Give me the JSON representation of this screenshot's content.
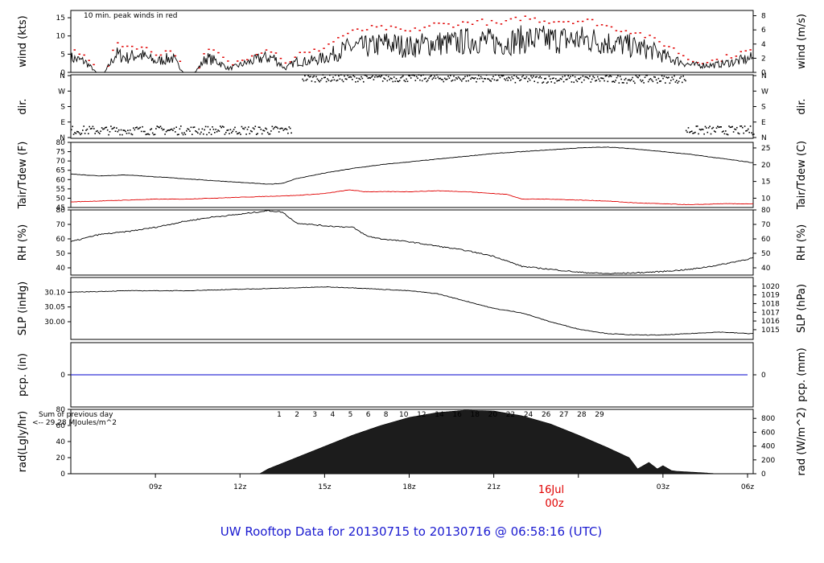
{
  "title": "UW Rooftop Data for 20130715  to  20130716 @ 06:58:16  (UTC)",
  "colors": {
    "title": "#1a1ad0",
    "peak": "#e00000",
    "dew": "#e00000",
    "pcp": "#0000cc",
    "rad_note": "#8a00c8",
    "date_label": "#e00000"
  },
  "x_axis": {
    "ticks": [
      "09z",
      "12z",
      "15z",
      "18z",
      "21z",
      "00z",
      "03z",
      "06z"
    ],
    "date_label": "16Jul",
    "date_tick": "00z"
  },
  "chart_data": [
    {
      "name": "wind",
      "type": "line",
      "left_label": "wind (kts)",
      "right_label": "wind (m/s)",
      "note": "10 min. peak winds in red",
      "ylim": [
        0,
        17
      ],
      "left_ticks": [
        "0",
        "5",
        "10",
        "15"
      ],
      "right_ticks": [
        "0",
        "2",
        "4",
        "6",
        "8"
      ],
      "x_hours": [
        6,
        6.5,
        6.9,
        7.2,
        7.6,
        8,
        8.4,
        9,
        9.6,
        10,
        10.4,
        10.8,
        11.2,
        11.6,
        12,
        12.4,
        12.8,
        13.2,
        13.6,
        14,
        14.4,
        15,
        15.6,
        16,
        16.6,
        17.2,
        18,
        18.8,
        19.6,
        20.4,
        21.2,
        22,
        22.8,
        23.6,
        24.4,
        25.2,
        26,
        26.6,
        27.2,
        28,
        28.8,
        29.6,
        30.2
      ],
      "values": [
        4,
        3,
        0,
        0,
        5,
        4,
        5,
        3,
        4,
        0,
        0,
        4,
        3,
        1,
        2,
        3,
        4,
        4,
        1,
        3,
        3,
        4,
        6,
        7,
        7,
        8,
        7,
        8,
        8,
        9,
        8,
        9,
        9,
        9,
        9,
        8,
        7,
        6,
        4,
        2,
        2,
        3,
        4
      ],
      "peak_values": [
        6,
        5,
        0,
        0,
        8,
        7,
        7,
        5,
        6,
        0,
        0,
        6,
        5,
        2,
        3,
        5,
        6,
        6,
        2,
        5,
        5,
        7,
        10,
        11,
        12,
        12,
        11,
        13,
        13,
        14,
        13,
        15,
        14,
        14,
        14,
        12,
        11,
        9,
        7,
        3,
        3,
        5,
        6
      ]
    },
    {
      "name": "direction",
      "type": "scatter",
      "left_label": "dir.",
      "right_label": "dir.",
      "ylim": [
        0,
        360
      ],
      "left_ticks": [
        "N",
        "E",
        "S",
        "W",
        "N"
      ],
      "right_ticks": [
        "N",
        "E",
        "S",
        "W",
        "N"
      ],
      "clusters": [
        {
          "x_range": [
            6,
            13.8
          ],
          "center": 45,
          "spread": 25
        },
        {
          "x_range": [
            14.2,
            21.5
          ],
          "center": 340,
          "spread": 20
        },
        {
          "x_range": [
            21.5,
            27.8
          ],
          "center": 335,
          "spread": 22
        },
        {
          "x_range": [
            27.8,
            30.2
          ],
          "center": 45,
          "spread": 25
        }
      ]
    },
    {
      "name": "temperature",
      "type": "line",
      "left_label": "Tair/Tdew (F)",
      "right_label": "Tair/Tdew (C)",
      "ylim": [
        45,
        80
      ],
      "left_ticks": [
        "45",
        "50",
        "55",
        "60",
        "65",
        "70",
        "75",
        "80"
      ],
      "right_ticks": [
        "10",
        "15",
        "20",
        "25"
      ],
      "series": [
        {
          "name": "Tair",
          "x_hours": [
            6,
            7,
            8,
            9,
            10,
            11,
            12,
            13,
            13.5,
            14,
            15,
            16,
            17,
            18,
            19,
            20,
            21,
            22,
            23,
            24,
            25,
            26,
            27,
            28,
            29,
            30,
            30.2
          ],
          "values": [
            63,
            62,
            62.5,
            61.5,
            60.5,
            59.5,
            58.5,
            57.5,
            58,
            60.5,
            63.5,
            66,
            68,
            69.5,
            71,
            72.5,
            74,
            75,
            76,
            77,
            77.5,
            76.5,
            75,
            73.5,
            71.5,
            69.5,
            69
          ]
        },
        {
          "name": "Tdew",
          "x_hours": [
            6,
            7,
            8,
            9,
            10,
            11,
            12,
            13,
            14,
            15,
            15.9,
            16.4,
            17,
            18,
            19,
            20,
            21,
            21.5,
            22,
            23,
            24,
            25,
            26,
            27,
            28,
            29,
            30,
            30.2
          ],
          "values": [
            48,
            48.5,
            49,
            49.5,
            49.5,
            50,
            50.5,
            51,
            51.5,
            52.5,
            54.5,
            53.5,
            53.5,
            53.5,
            54,
            53.5,
            52.5,
            52,
            49.5,
            49.5,
            49,
            48.5,
            47.5,
            47,
            46.5,
            47,
            47,
            47
          ]
        }
      ]
    },
    {
      "name": "rh",
      "type": "line",
      "left_label": "RH (%)",
      "right_label": "RH (%)",
      "ylim": [
        35,
        80
      ],
      "left_ticks": [
        "40",
        "50",
        "60",
        "70",
        "80"
      ],
      "right_ticks": [
        "40",
        "50",
        "60",
        "70",
        "80"
      ],
      "x_hours": [
        6,
        7,
        8,
        9,
        10,
        11,
        12,
        13,
        13.5,
        14,
        14.5,
        15,
        16,
        16.5,
        17,
        18,
        19,
        20,
        21,
        22,
        23,
        24,
        25,
        26,
        27,
        28,
        29,
        30,
        30.2
      ],
      "values": [
        58,
        63,
        65,
        68,
        72,
        75,
        77,
        79.5,
        78.5,
        71,
        70,
        69,
        68,
        62,
        60,
        58,
        55,
        52,
        48,
        41,
        39,
        37,
        36,
        36.5,
        37.5,
        39,
        42,
        46,
        47
      ]
    },
    {
      "name": "slp",
      "type": "line",
      "left_label": "SLP (inHg)",
      "right_label": "SLP (hPa)",
      "ylim": [
        29.94,
        30.15
      ],
      "left_ticks": [
        "30.00",
        "30.05",
        "30.10"
      ],
      "right_ticks": [
        "1015",
        "1016",
        "1017",
        "1018",
        "1019",
        "1020"
      ],
      "x_hours": [
        6,
        8,
        10,
        12,
        14,
        15,
        16,
        17,
        18,
        19,
        20,
        21,
        22,
        23,
        24,
        25,
        26,
        27,
        28,
        29,
        30,
        30.2
      ],
      "values": [
        30.1,
        30.105,
        30.105,
        30.11,
        30.115,
        30.118,
        30.115,
        30.11,
        30.105,
        30.095,
        30.07,
        30.045,
        30.03,
        30.0,
        29.975,
        29.96,
        29.955,
        29.955,
        29.96,
        29.965,
        29.96,
        29.96
      ]
    },
    {
      "name": "precip",
      "type": "line",
      "left_label": "pcp. (in)",
      "right_label": "pcp. (mm)",
      "ylim": [
        -1,
        1
      ],
      "left_ticks": [
        "0"
      ],
      "right_ticks": [
        "0"
      ],
      "x_hours": [
        6,
        30.2
      ],
      "values": [
        0,
        0
      ]
    },
    {
      "name": "radiation",
      "type": "area",
      "left_label": "rad(Lgly/hr)",
      "right_label": "rad (W/m^2)",
      "ylim": [
        0,
        80
      ],
      "left_ticks": [
        "0",
        "20",
        "40",
        "60",
        "80"
      ],
      "right_ticks": [
        "0",
        "200",
        "400",
        "600",
        "800"
      ],
      "note_line1": "Sum of previous day",
      "note_line2": "<-- 29.28 MJoules/m^2",
      "top_labels": [
        "1",
        "2",
        "3",
        "4",
        "5",
        "6",
        "8",
        "10",
        "12",
        "14",
        "16",
        "18",
        "20",
        "22",
        "24",
        "26",
        "27",
        "28",
        "29"
      ],
      "x_hours": [
        6,
        12.7,
        13,
        14,
        15,
        16,
        17,
        18,
        19,
        20,
        21,
        22,
        23,
        24,
        25,
        25.8,
        26.1,
        26.5,
        26.8,
        27,
        27.3,
        27.5,
        28,
        28.5,
        28.9
      ],
      "values": [
        0,
        0,
        6,
        20,
        34,
        48,
        60,
        70,
        76,
        79,
        78,
        72,
        62,
        48,
        33,
        20,
        6,
        14,
        6,
        10,
        4,
        3,
        2,
        1,
        0
      ]
    }
  ]
}
